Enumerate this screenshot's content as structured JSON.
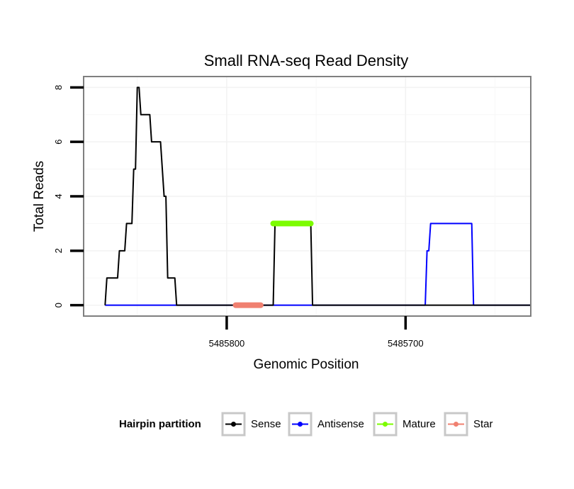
{
  "chart_data": {
    "type": "line",
    "title": "Small RNA-seq Read Density",
    "xlabel": "Genomic Position",
    "ylabel": "Total Reads",
    "x_reversed": true,
    "xlim": [
      5485880,
      5485630
    ],
    "ylim": [
      -0.4,
      8.4
    ],
    "x_ticks": [
      5485800,
      5485700
    ],
    "x_tick_labels": [
      "5485800",
      "5485700"
    ],
    "y_ticks": [
      0,
      2,
      4,
      6,
      8
    ],
    "y_tick_labels": [
      "0",
      "2",
      "4",
      "6",
      "8"
    ],
    "grid": true,
    "legend": {
      "title": "Hairpin partition",
      "position": "bottom",
      "entries": [
        "Sense",
        "Antisense",
        "Mature",
        "Star"
      ]
    },
    "series": [
      {
        "name": "Sense",
        "color": "#000000",
        "points": [
          [
            5485868,
            0
          ],
          [
            5485867,
            1
          ],
          [
            5485861,
            1
          ],
          [
            5485860,
            2
          ],
          [
            5485857,
            2
          ],
          [
            5485856,
            3
          ],
          [
            5485853,
            3
          ],
          [
            5485852,
            5
          ],
          [
            5485851,
            5
          ],
          [
            5485850,
            8
          ],
          [
            5485849,
            8
          ],
          [
            5485848,
            7
          ],
          [
            5485843,
            7
          ],
          [
            5485842,
            6
          ],
          [
            5485837,
            6
          ],
          [
            5485835,
            4
          ],
          [
            5485834,
            4
          ],
          [
            5485833,
            1
          ],
          [
            5485829,
            1
          ],
          [
            5485828,
            0
          ],
          [
            5485774,
            0
          ],
          [
            5485773,
            3
          ],
          [
            5485753,
            3
          ],
          [
            5485752,
            0
          ],
          [
            5485630,
            0
          ]
        ]
      },
      {
        "name": "Antisense",
        "color": "#0000ff",
        "points": [
          [
            5485868,
            0
          ],
          [
            5485828,
            0
          ],
          [
            5485774,
            0
          ],
          [
            5485752,
            0
          ],
          [
            5485689,
            0
          ],
          [
            5485688,
            2
          ],
          [
            5485687,
            2
          ],
          [
            5485686,
            3
          ],
          [
            5485663,
            3
          ],
          [
            5485662,
            0
          ],
          [
            5485630,
            0
          ]
        ]
      },
      {
        "name": "Mature",
        "color": "#7cfc00",
        "points": [
          [
            5485774,
            3
          ],
          [
            5485753,
            3
          ]
        ]
      },
      {
        "name": "Star",
        "color": "#f08070",
        "points": [
          [
            5485795,
            0
          ],
          [
            5485781,
            0
          ]
        ]
      }
    ]
  }
}
